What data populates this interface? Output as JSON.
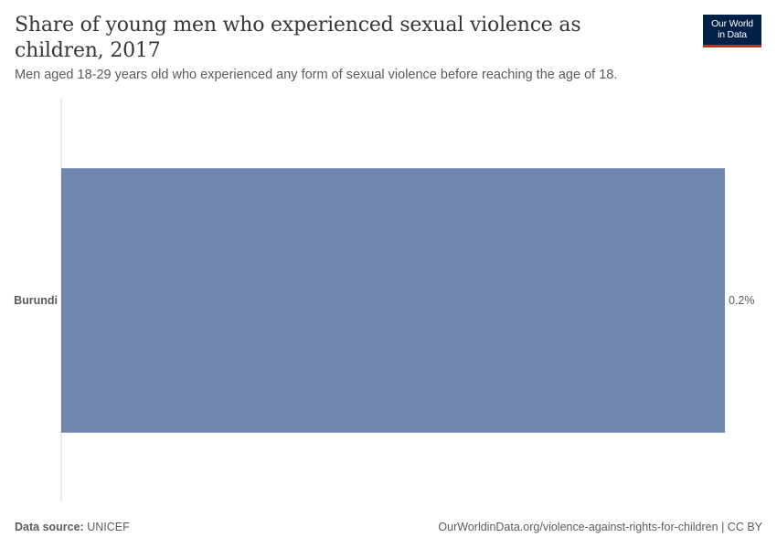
{
  "header": {
    "title": "Share of young men who experienced sexual violence as children, 2017",
    "subtitle": "Men aged 18-29 years old who experienced any form of sexual violence before reaching the age of 18."
  },
  "logo": {
    "line1": "Our World",
    "line2": "in Data"
  },
  "chart_data": {
    "type": "bar",
    "orientation": "horizontal",
    "categories": [
      "Burundi"
    ],
    "values": [
      0.2
    ],
    "value_labels": [
      "0.2%"
    ],
    "unit": "%",
    "bar_color": "#6f87ae",
    "xlim": [
      0,
      0.2
    ],
    "grid": false
  },
  "footer": {
    "source_label": "Data source:",
    "source_value": "UNICEF",
    "url": "OurWorldinData.org/violence-against-rights-for-children",
    "license": "CC BY"
  }
}
